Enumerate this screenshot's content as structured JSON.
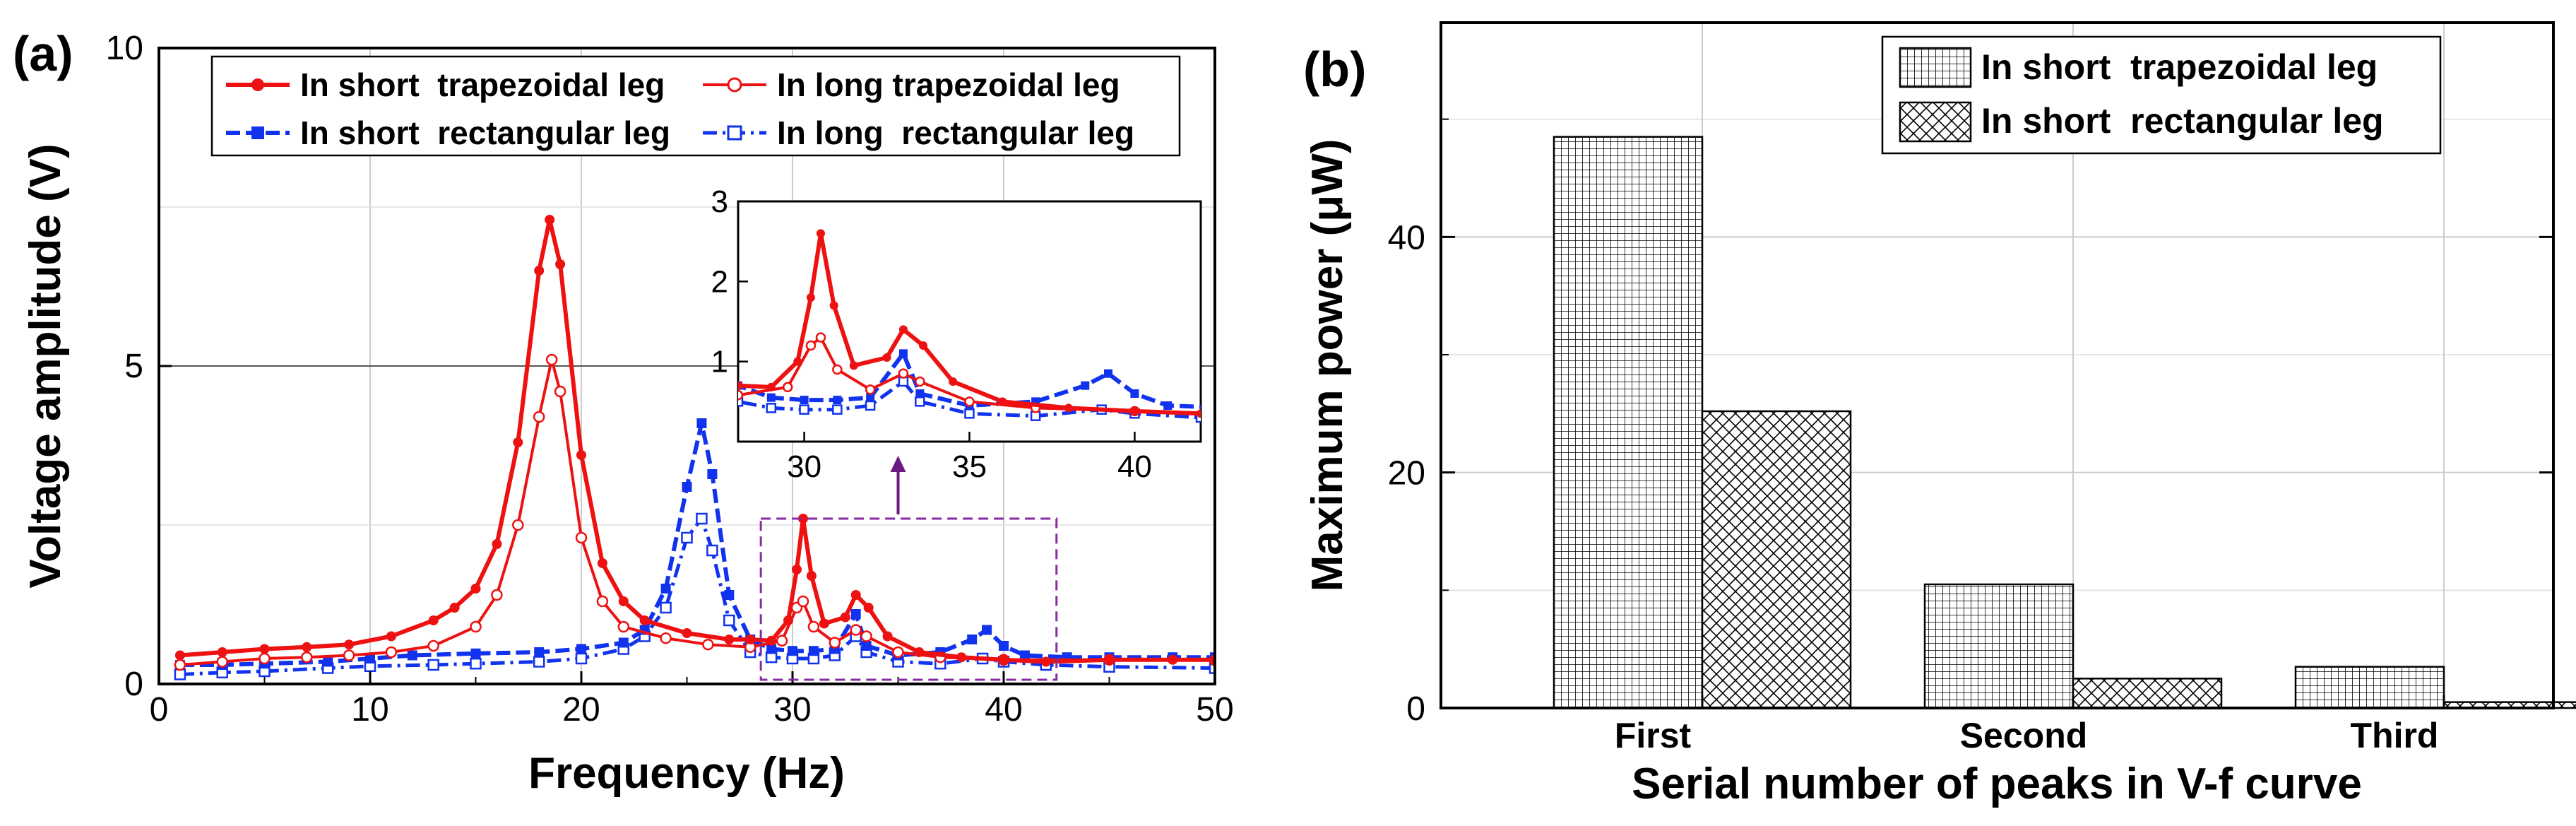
{
  "chart_data": [
    {
      "panel_label": "(a)",
      "type": "line",
      "xlabel": "Frequency (Hz)",
      "ylabel": "Voltage amplitude (V)",
      "xlim": [
        0,
        50
      ],
      "ylim": [
        0,
        10
      ],
      "xticks": [
        "0",
        "10",
        "20",
        "30",
        "40",
        "50"
      ],
      "yticks": [
        "0",
        "5",
        "10"
      ],
      "grid": true,
      "legend_position": "top",
      "series": [
        {
          "name": "In short  trapezoidal leg",
          "color": "#ee1111",
          "marker": "filled-circle",
          "points": [
            [
              1,
              0.45
            ],
            [
              3,
              0.5
            ],
            [
              5,
              0.55
            ],
            [
              7,
              0.58
            ],
            [
              9,
              0.62
            ],
            [
              11,
              0.75
            ],
            [
              13,
              1.0
            ],
            [
              14,
              1.2
            ],
            [
              15,
              1.5
            ],
            [
              16,
              2.2
            ],
            [
              17,
              3.8
            ],
            [
              18,
              6.5
            ],
            [
              18.5,
              7.3
            ],
            [
              19,
              6.6
            ],
            [
              20,
              3.6
            ],
            [
              21,
              1.9
            ],
            [
              22,
              1.3
            ],
            [
              23,
              1.0
            ],
            [
              25,
              0.8
            ],
            [
              27,
              0.7
            ],
            [
              28,
              0.7
            ],
            [
              29,
              0.68
            ],
            [
              29.8,
              1.0
            ],
            [
              30.2,
              1.8
            ],
            [
              30.5,
              2.6
            ],
            [
              30.9,
              1.7
            ],
            [
              31.5,
              0.95
            ],
            [
              32.5,
              1.05
            ],
            [
              33,
              1.4
            ],
            [
              33.6,
              1.2
            ],
            [
              34.5,
              0.75
            ],
            [
              36,
              0.5
            ],
            [
              38,
              0.42
            ],
            [
              40,
              0.38
            ],
            [
              42,
              0.35
            ],
            [
              45,
              0.38
            ],
            [
              48,
              0.38
            ],
            [
              50,
              0.38
            ]
          ]
        },
        {
          "name": "In long trapezoidal leg",
          "color": "#ee1111",
          "marker": "open-circle",
          "points": [
            [
              1,
              0.3
            ],
            [
              3,
              0.35
            ],
            [
              5,
              0.4
            ],
            [
              7,
              0.42
            ],
            [
              9,
              0.45
            ],
            [
              11,
              0.5
            ],
            [
              13,
              0.6
            ],
            [
              15,
              0.9
            ],
            [
              16,
              1.4
            ],
            [
              17,
              2.5
            ],
            [
              18,
              4.2
            ],
            [
              18.6,
              5.1
            ],
            [
              19,
              4.6
            ],
            [
              20,
              2.3
            ],
            [
              21,
              1.3
            ],
            [
              22,
              0.9
            ],
            [
              24,
              0.72
            ],
            [
              26,
              0.62
            ],
            [
              28,
              0.58
            ],
            [
              29.5,
              0.68
            ],
            [
              30.2,
              1.2
            ],
            [
              30.5,
              1.3
            ],
            [
              31,
              0.9
            ],
            [
              32,
              0.65
            ],
            [
              33,
              0.85
            ],
            [
              33.5,
              0.75
            ],
            [
              35,
              0.5
            ],
            [
              37,
              0.42
            ],
            [
              40,
              0.38
            ],
            [
              45,
              0.38
            ],
            [
              50,
              0.37
            ]
          ]
        },
        {
          "name": "In short  rectangular leg",
          "color": "#1133ee",
          "marker": "filled-square",
          "points": [
            [
              1,
              0.3
            ],
            [
              3,
              0.3
            ],
            [
              5,
              0.32
            ],
            [
              8,
              0.35
            ],
            [
              10,
              0.4
            ],
            [
              12,
              0.45
            ],
            [
              15,
              0.48
            ],
            [
              18,
              0.5
            ],
            [
              20,
              0.55
            ],
            [
              22,
              0.65
            ],
            [
              23,
              0.85
            ],
            [
              24,
              1.5
            ],
            [
              25,
              3.1
            ],
            [
              25.7,
              4.1
            ],
            [
              26.2,
              3.3
            ],
            [
              27,
              1.4
            ],
            [
              28,
              0.7
            ],
            [
              29,
              0.55
            ],
            [
              30,
              0.52
            ],
            [
              31,
              0.52
            ],
            [
              32,
              0.55
            ],
            [
              33,
              1.1
            ],
            [
              33.5,
              0.6
            ],
            [
              35,
              0.45
            ],
            [
              37,
              0.5
            ],
            [
              38.5,
              0.7
            ],
            [
              39.2,
              0.85
            ],
            [
              40,
              0.6
            ],
            [
              41,
              0.45
            ],
            [
              43,
              0.42
            ],
            [
              45,
              0.42
            ],
            [
              48,
              0.42
            ],
            [
              50,
              0.42
            ]
          ]
        },
        {
          "name": "In long  rectangular leg",
          "color": "#1133ee",
          "marker": "open-square",
          "points": [
            [
              1,
              0.15
            ],
            [
              3,
              0.18
            ],
            [
              5,
              0.2
            ],
            [
              8,
              0.25
            ],
            [
              10,
              0.28
            ],
            [
              13,
              0.3
            ],
            [
              15,
              0.32
            ],
            [
              18,
              0.35
            ],
            [
              20,
              0.4
            ],
            [
              22,
              0.55
            ],
            [
              23,
              0.75
            ],
            [
              24,
              1.2
            ],
            [
              25,
              2.3
            ],
            [
              25.7,
              2.6
            ],
            [
              26.2,
              2.1
            ],
            [
              27,
              1.0
            ],
            [
              28,
              0.5
            ],
            [
              29,
              0.42
            ],
            [
              30,
              0.4
            ],
            [
              31,
              0.4
            ],
            [
              32,
              0.45
            ],
            [
              33,
              0.75
            ],
            [
              33.5,
              0.5
            ],
            [
              35,
              0.35
            ],
            [
              37,
              0.32
            ],
            [
              39,
              0.4
            ],
            [
              40,
              0.35
            ],
            [
              42,
              0.3
            ],
            [
              45,
              0.27
            ],
            [
              50,
              0.25
            ]
          ]
        }
      ],
      "inset": {
        "xlim": [
          28,
          42
        ],
        "ylim": [
          0,
          3
        ],
        "xticks": [
          "30",
          "35",
          "40"
        ],
        "yticks": [
          "1",
          "2",
          "3"
        ],
        "highlight_box": {
          "x": [
            28.5,
            42.5
          ],
          "y": [
            0,
            2.6
          ]
        }
      }
    },
    {
      "panel_label": "(b)",
      "type": "bar",
      "xlabel": "Serial number of peaks in V-f curve",
      "ylabel": "Maximum power (μW)",
      "ylim": [
        0,
        50
      ],
      "yticks": [
        "0",
        "20",
        "40"
      ],
      "categories": [
        "First",
        "Second",
        "Third"
      ],
      "grid": true,
      "legend_position": "top-right",
      "series": [
        {
          "name": "In short  trapezoidal leg",
          "pattern": "grid",
          "values": [
            48.5,
            10.5,
            3.5
          ]
        },
        {
          "name": "In short  rectangular leg",
          "pattern": "crosshatch",
          "values": [
            25.2,
            2.5,
            0.5
          ]
        }
      ]
    }
  ]
}
